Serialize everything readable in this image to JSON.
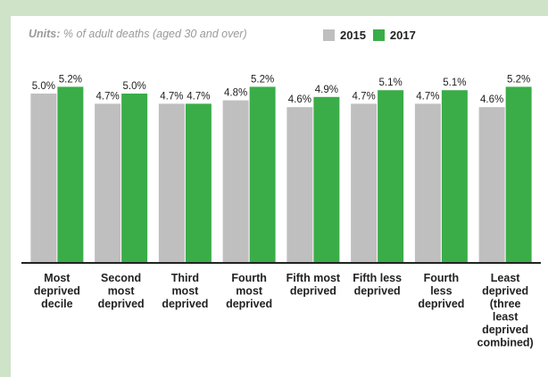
{
  "units": {
    "key": "Units:",
    "text": "% of adult deaths (aged 30 and over)"
  },
  "colors": {
    "s2015": "#bfbfbf",
    "s2017": "#3aad48",
    "axis": "#222222",
    "text": "#222222"
  },
  "chart_data": {
    "type": "bar",
    "title": "",
    "xlabel": "",
    "ylabel": "",
    "ylim": [
      0,
      5.8
    ],
    "grid": false,
    "legend_position": "top",
    "categories": [
      [
        "Most",
        "deprived",
        "decile"
      ],
      [
        "Second",
        "most",
        "deprived"
      ],
      [
        "Third",
        "most",
        "deprived"
      ],
      [
        "Fourth",
        "most",
        "deprived"
      ],
      [
        "Fifth most",
        "deprived"
      ],
      [
        "Fifth less",
        "deprived"
      ],
      [
        "Fourth",
        "less",
        "deprived"
      ],
      [
        "Least",
        "deprived",
        "(three",
        "least",
        "deprived",
        "combined)"
      ]
    ],
    "series": [
      {
        "name": "2015",
        "values": [
          5.0,
          4.7,
          4.7,
          4.8,
          4.6,
          4.7,
          4.7,
          4.6
        ],
        "labels": [
          "5.0%",
          "4.7%",
          "4.7%",
          "4.8%",
          "4.6%",
          "4.7%",
          "4.7%",
          "4.6%"
        ]
      },
      {
        "name": "2017",
        "values": [
          5.2,
          5.0,
          4.7,
          5.2,
          4.9,
          5.1,
          5.1,
          5.2
        ],
        "labels": [
          "5.2%",
          "5.0%",
          "4.7%",
          "5.2%",
          "4.9%",
          "5.1%",
          "5.1%",
          "5.2%"
        ]
      }
    ]
  }
}
